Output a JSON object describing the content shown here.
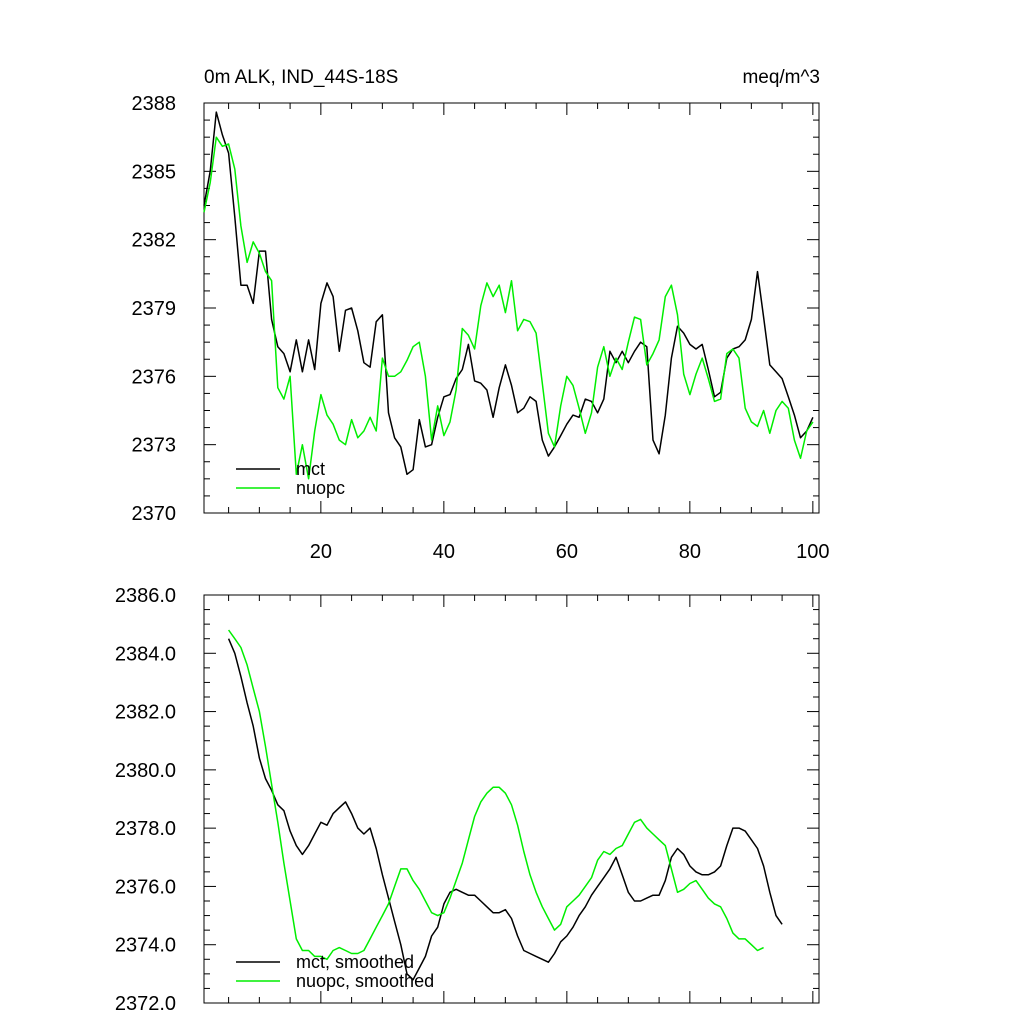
{
  "chart_data": [
    {
      "type": "line",
      "title_left": "0m ALK, IND_44S-18S",
      "title_right": "meq/m^3",
      "xlim": [
        1,
        101
      ],
      "ylim": [
        2370,
        2388
      ],
      "x_ticks": [
        20,
        40,
        60,
        80,
        100
      ],
      "y_ticks": [
        2370,
        2373,
        2376,
        2379,
        2382,
        2385,
        2388
      ],
      "y_tick_labels": [
        "2370",
        "2373",
        "2376",
        "2379",
        "2382",
        "2385",
        "2388"
      ],
      "show_x_labels": true,
      "series": [
        {
          "name": "mct",
          "color": "#000000",
          "x_start": 1,
          "values": [
            2383.5,
            2385.0,
            2387.6,
            2386.6,
            2385.8,
            2383.0,
            2380.0,
            2380.0,
            2379.2,
            2381.5,
            2381.5,
            2378.5,
            2377.3,
            2377.0,
            2376.2,
            2377.6,
            2376.2,
            2377.6,
            2376.3,
            2379.2,
            2380.1,
            2379.5,
            2377.1,
            2378.9,
            2379.0,
            2378.0,
            2376.6,
            2376.4,
            2378.4,
            2378.7,
            2374.4,
            2373.3,
            2372.9,
            2371.7,
            2371.9,
            2374.1,
            2372.9,
            2373.0,
            2374.2,
            2375.1,
            2375.2,
            2375.9,
            2376.3,
            2377.4,
            2375.8,
            2375.7,
            2375.4,
            2374.2,
            2375.5,
            2376.5,
            2375.6,
            2374.4,
            2374.6,
            2375.1,
            2374.9,
            2373.2,
            2372.5,
            2372.9,
            2373.4,
            2373.9,
            2374.3,
            2374.2,
            2375.0,
            2374.9,
            2374.4,
            2375.0,
            2377.1,
            2376.6,
            2377.1,
            2376.6,
            2377.1,
            2377.5,
            2377.3,
            2373.2,
            2372.6,
            2374.3,
            2376.8,
            2378.2,
            2377.9,
            2377.4,
            2377.2,
            2377.4,
            2376.3,
            2375.1,
            2375.3,
            2376.8,
            2377.2,
            2377.3,
            2377.6,
            2378.5,
            2380.6,
            2378.6,
            2376.5,
            2376.2,
            2375.9,
            2375.1,
            2374.3,
            2373.3,
            2373.6,
            2374.2
          ]
        },
        {
          "name": "nuopc",
          "color": "#00ee00",
          "x_start": 1,
          "values": [
            2383.2,
            2384.5,
            2386.5,
            2386.1,
            2386.2,
            2385.1,
            2382.6,
            2381.0,
            2381.9,
            2381.4,
            2380.6,
            2380.2,
            2375.5,
            2375.0,
            2376.0,
            2371.7,
            2373.0,
            2371.5,
            2373.6,
            2375.2,
            2374.3,
            2373.9,
            2373.2,
            2373.0,
            2374.1,
            2373.3,
            2373.6,
            2374.2,
            2373.6,
            2376.8,
            2376.0,
            2376.0,
            2376.2,
            2376.7,
            2377.3,
            2377.5,
            2376.0,
            2373.2,
            2374.7,
            2373.4,
            2374.0,
            2375.4,
            2378.1,
            2377.8,
            2377.2,
            2379.1,
            2380.1,
            2379.5,
            2380.0,
            2378.8,
            2380.2,
            2378.0,
            2378.5,
            2378.4,
            2377.9,
            2375.7,
            2373.5,
            2372.9,
            2374.7,
            2376.0,
            2375.6,
            2374.6,
            2373.5,
            2374.4,
            2376.4,
            2377.3,
            2376.0,
            2376.8,
            2376.3,
            2377.5,
            2378.6,
            2378.5,
            2376.5,
            2377.0,
            2377.6,
            2379.5,
            2380.0,
            2378.7,
            2376.1,
            2375.2,
            2376.1,
            2376.8,
            2375.9,
            2374.9,
            2375.0,
            2377.0,
            2377.2,
            2376.8,
            2374.6,
            2374.0,
            2373.8,
            2374.5,
            2373.5,
            2374.5,
            2374.9,
            2374.6,
            2373.2,
            2372.4,
            2373.6,
            2374.0
          ]
        }
      ],
      "legend_position": "lower-left"
    },
    {
      "type": "line",
      "title_left": "",
      "title_right": "",
      "xlim": [
        1,
        101
      ],
      "ylim": [
        2372.0,
        2386.0
      ],
      "x_ticks": [
        20,
        40,
        60,
        80,
        100
      ],
      "y_ticks": [
        2372.0,
        2374.0,
        2376.0,
        2378.0,
        2380.0,
        2382.0,
        2384.0,
        2386.0
      ],
      "y_tick_labels": [
        "2372.0",
        "2374.0",
        "2376.0",
        "2378.0",
        "2380.0",
        "2382.0",
        "2384.0",
        "2386.0"
      ],
      "show_x_labels": false,
      "series": [
        {
          "name": "mct, smoothed",
          "color": "#000000",
          "x_start": 5,
          "values": [
            2384.5,
            2384.0,
            2383.2,
            2382.3,
            2381.5,
            2380.4,
            2379.7,
            2379.3,
            2378.8,
            2378.6,
            2377.9,
            2377.4,
            2377.1,
            2377.4,
            2377.8,
            2378.2,
            2378.1,
            2378.5,
            2378.7,
            2378.9,
            2378.5,
            2378.0,
            2377.8,
            2378.0,
            2377.3,
            2376.4,
            2375.6,
            2374.8,
            2374.0,
            2373.0,
            2372.8,
            2373.2,
            2373.6,
            2374.3,
            2374.6,
            2375.4,
            2375.8,
            2375.9,
            2375.8,
            2375.7,
            2375.7,
            2375.5,
            2375.3,
            2375.1,
            2375.1,
            2375.2,
            2374.9,
            2374.3,
            2373.8,
            2373.7,
            2373.6,
            2373.5,
            2373.4,
            2373.7,
            2374.1,
            2374.3,
            2374.6,
            2375.0,
            2375.3,
            2375.7,
            2376.0,
            2376.3,
            2376.6,
            2377.0,
            2376.4,
            2375.8,
            2375.5,
            2375.5,
            2375.6,
            2375.7,
            2375.7,
            2376.2,
            2377.0,
            2377.3,
            2377.1,
            2376.7,
            2376.5,
            2376.4,
            2376.4,
            2376.5,
            2376.7,
            2377.4,
            2378.0,
            2378.0,
            2377.9,
            2377.6,
            2377.3,
            2376.7,
            2375.8,
            2375.0,
            2374.7
          ]
        },
        {
          "name": "nuopc, smoothed",
          "color": "#00ee00",
          "x_start": 5,
          "values": [
            2384.8,
            2384.5,
            2384.2,
            2383.6,
            2382.8,
            2382.0,
            2380.8,
            2379.5,
            2378.2,
            2376.8,
            2375.5,
            2374.2,
            2373.8,
            2373.8,
            2373.6,
            2373.6,
            2373.5,
            2373.8,
            2373.9,
            2373.8,
            2373.7,
            2373.7,
            2373.8,
            2374.2,
            2374.6,
            2375.0,
            2375.4,
            2376.0,
            2376.6,
            2376.6,
            2376.2,
            2375.9,
            2375.5,
            2375.1,
            2375.0,
            2375.1,
            2375.6,
            2376.2,
            2376.8,
            2377.6,
            2378.4,
            2378.9,
            2379.2,
            2379.4,
            2379.4,
            2379.2,
            2378.8,
            2378.1,
            2377.2,
            2376.4,
            2375.8,
            2375.3,
            2374.9,
            2374.5,
            2374.7,
            2375.3,
            2375.5,
            2375.7,
            2376.0,
            2376.3,
            2376.9,
            2377.2,
            2377.1,
            2377.3,
            2377.4,
            2377.8,
            2378.2,
            2378.3,
            2378.0,
            2377.8,
            2377.6,
            2377.4,
            2376.6,
            2375.8,
            2375.9,
            2376.1,
            2376.2,
            2375.9,
            2375.6,
            2375.4,
            2375.3,
            2374.9,
            2374.4,
            2374.2,
            2374.2,
            2374.0,
            2373.8,
            2373.9
          ]
        }
      ],
      "legend_position": "lower-left"
    }
  ]
}
